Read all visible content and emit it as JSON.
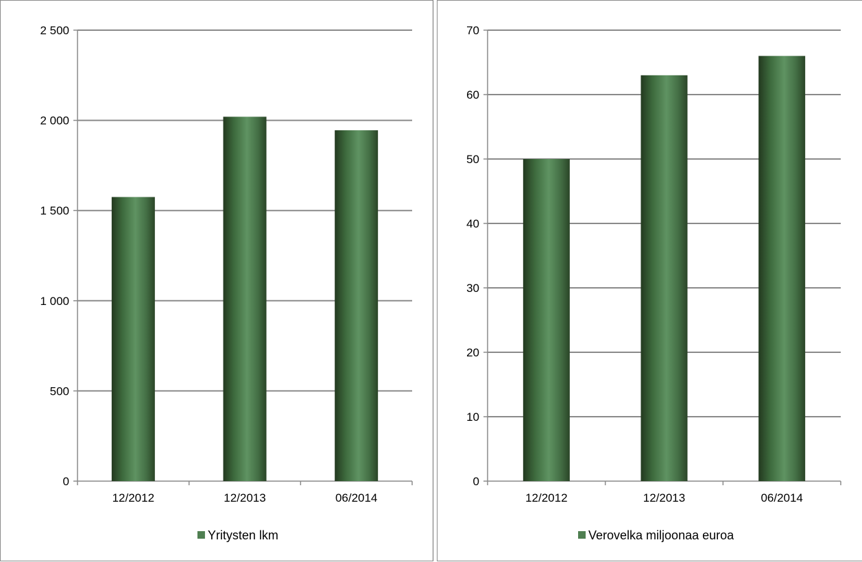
{
  "chart_data": [
    {
      "type": "bar",
      "categories": [
        "12/2012",
        "12/2013",
        "06/2014"
      ],
      "series": [
        {
          "name": "Yritysten lkm",
          "values": [
            1575,
            2020,
            1945
          ],
          "color": "#4f7f51"
        }
      ],
      "yticks": [
        "0",
        "500",
        "1 000",
        "1 500",
        "2 000",
        "2 500"
      ],
      "ylim": [
        0,
        2500
      ],
      "grid": true,
      "legend": "bottom"
    },
    {
      "type": "bar",
      "categories": [
        "12/2012",
        "12/2013",
        "06/2014"
      ],
      "series": [
        {
          "name": "Verovelka miljoonaa euroa",
          "values": [
            50,
            63,
            66
          ],
          "color": "#4f7f51"
        }
      ],
      "yticks": [
        "0",
        "10",
        "20",
        "30",
        "40",
        "50",
        "60",
        "70"
      ],
      "ylim": [
        0,
        70
      ],
      "grid": true,
      "legend": "bottom"
    }
  ]
}
